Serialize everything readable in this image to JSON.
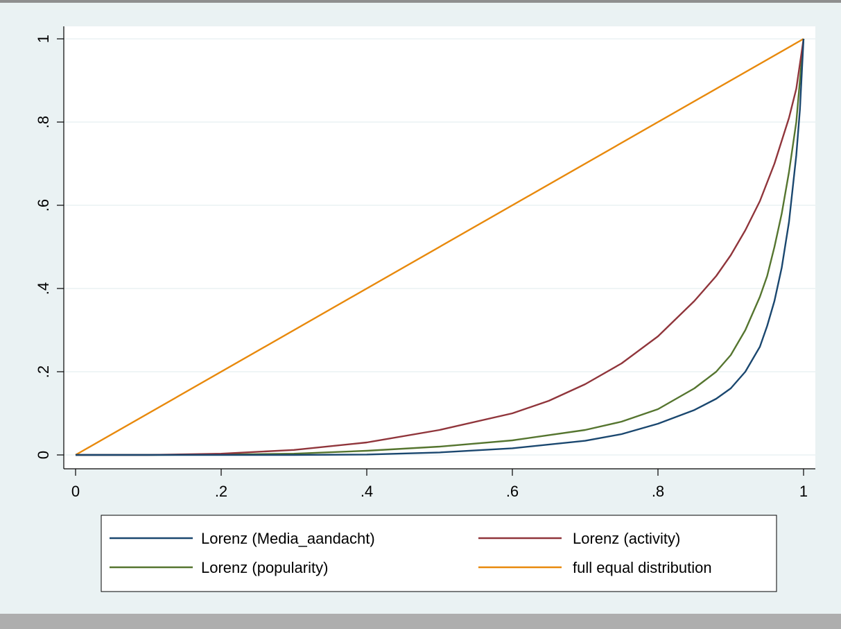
{
  "chart_data": {
    "type": "line",
    "title": "",
    "xlabel": "",
    "ylabel": "",
    "xlim": [
      0,
      1
    ],
    "ylim": [
      0,
      1
    ],
    "xticks": [
      0,
      0.2,
      0.4,
      0.6,
      0.8,
      1
    ],
    "yticks": [
      0,
      0.2,
      0.4,
      0.6,
      0.8,
      1
    ],
    "xtick_labels": [
      "0",
      ".2",
      ".4",
      ".6",
      ".8",
      "1"
    ],
    "ytick_labels": [
      "0",
      ".2",
      ".4",
      ".6",
      ".8",
      "1"
    ],
    "grid": "horizontal",
    "legend_position": "bottom",
    "series": [
      {
        "name": "Lorenz (Media_aandacht)",
        "color": "#1a476f",
        "x": [
          0,
          0.1,
          0.2,
          0.3,
          0.4,
          0.5,
          0.6,
          0.7,
          0.75,
          0.8,
          0.85,
          0.88,
          0.9,
          0.92,
          0.94,
          0.95,
          0.96,
          0.97,
          0.98,
          0.99,
          0.995,
          1
        ],
        "y": [
          0,
          0,
          0,
          0,
          0.001,
          0.006,
          0.016,
          0.034,
          0.05,
          0.075,
          0.108,
          0.135,
          0.16,
          0.2,
          0.26,
          0.31,
          0.37,
          0.45,
          0.56,
          0.72,
          0.83,
          1
        ]
      },
      {
        "name": "Lorenz (activity)",
        "color": "#90353b",
        "x": [
          0,
          0.1,
          0.2,
          0.3,
          0.4,
          0.5,
          0.6,
          0.65,
          0.7,
          0.75,
          0.8,
          0.85,
          0.88,
          0.9,
          0.92,
          0.94,
          0.96,
          0.98,
          0.99,
          1
        ],
        "y": [
          0,
          0,
          0.003,
          0.012,
          0.03,
          0.06,
          0.1,
          0.13,
          0.17,
          0.22,
          0.285,
          0.37,
          0.43,
          0.48,
          0.54,
          0.61,
          0.7,
          0.81,
          0.88,
          1
        ]
      },
      {
        "name": "Lorenz (popularity)",
        "color": "#55752f",
        "x": [
          0,
          0.1,
          0.2,
          0.3,
          0.4,
          0.5,
          0.6,
          0.7,
          0.75,
          0.8,
          0.85,
          0.88,
          0.9,
          0.92,
          0.94,
          0.95,
          0.96,
          0.97,
          0.98,
          0.99,
          1
        ],
        "y": [
          0,
          0,
          0.001,
          0.003,
          0.01,
          0.02,
          0.035,
          0.06,
          0.08,
          0.11,
          0.16,
          0.2,
          0.24,
          0.3,
          0.38,
          0.43,
          0.5,
          0.58,
          0.68,
          0.8,
          1
        ]
      },
      {
        "name": "full equal distribution",
        "color": "#e8890c",
        "x": [
          0,
          1
        ],
        "y": [
          0,
          1
        ]
      }
    ]
  }
}
